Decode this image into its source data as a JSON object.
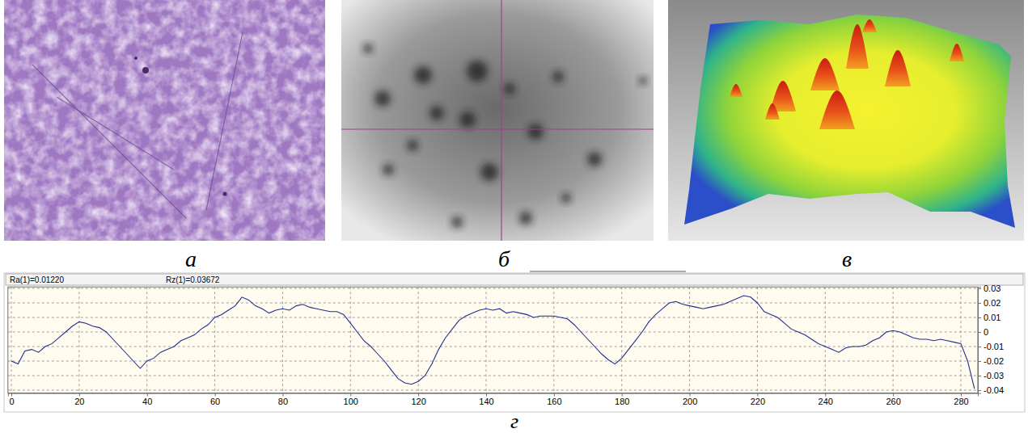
{
  "panel_labels": [
    "а",
    "б",
    "в",
    "г"
  ],
  "chart_data": {
    "type": "line",
    "annotations": [
      "Ra(1)=0.01220",
      "Rz(1)=0.03672"
    ],
    "x": [
      0,
      2,
      4,
      6,
      8,
      10,
      12,
      14,
      16,
      18,
      20,
      22,
      24,
      26,
      28,
      30,
      32,
      34,
      36,
      38,
      40,
      42,
      44,
      46,
      48,
      50,
      52,
      54,
      56,
      58,
      60,
      62,
      64,
      66,
      68,
      70,
      72,
      74,
      76,
      78,
      80,
      82,
      84,
      86,
      88,
      90,
      92,
      94,
      96,
      98,
      100,
      102,
      104,
      106,
      108,
      110,
      112,
      114,
      116,
      118,
      120,
      122,
      124,
      126,
      128,
      130,
      132,
      134,
      136,
      138,
      140,
      142,
      144,
      146,
      148,
      150,
      152,
      154,
      156,
      158,
      160,
      162,
      164,
      166,
      168,
      170,
      172,
      174,
      176,
      178,
      180,
      182,
      184,
      186,
      188,
      190,
      192,
      194,
      196,
      198,
      200,
      202,
      204,
      206,
      208,
      210,
      212,
      214,
      216,
      218,
      220,
      222,
      224,
      226,
      228,
      230,
      232,
      234,
      236,
      238,
      240,
      242,
      244,
      246,
      248,
      250,
      252,
      254,
      256,
      258,
      260,
      262,
      264,
      266,
      268,
      270,
      272,
      274,
      276,
      278,
      280,
      282,
      284
    ],
    "series": [
      {
        "color": "#1f2f8f",
        "values": [
          -0.02,
          -0.022,
          -0.013,
          -0.012,
          -0.014,
          -0.01,
          -0.008,
          -0.004,
          0.0,
          0.004,
          0.007,
          0.006,
          0.004,
          0.003,
          0.0,
          -0.005,
          -0.01,
          -0.015,
          -0.02,
          -0.025,
          -0.02,
          -0.018,
          -0.014,
          -0.012,
          -0.01,
          -0.006,
          -0.004,
          -0.002,
          0.002,
          0.005,
          0.01,
          0.012,
          0.015,
          0.018,
          0.024,
          0.022,
          0.018,
          0.016,
          0.013,
          0.015,
          0.016,
          0.015,
          0.018,
          0.019,
          0.017,
          0.016,
          0.015,
          0.014,
          0.014,
          0.012,
          0.006,
          0.0,
          -0.006,
          -0.01,
          -0.015,
          -0.02,
          -0.026,
          -0.032,
          -0.035,
          -0.036,
          -0.034,
          -0.03,
          -0.022,
          -0.012,
          -0.004,
          0.002,
          0.008,
          0.011,
          0.013,
          0.015,
          0.016,
          0.015,
          0.016,
          0.013,
          0.014,
          0.013,
          0.012,
          0.01,
          0.011,
          0.011,
          0.011,
          0.01,
          0.009,
          0.005,
          0.0,
          -0.005,
          -0.01,
          -0.015,
          -0.019,
          -0.022,
          -0.018,
          -0.012,
          -0.006,
          0.0,
          0.007,
          0.012,
          0.016,
          0.02,
          0.021,
          0.019,
          0.018,
          0.017,
          0.016,
          0.017,
          0.018,
          0.019,
          0.021,
          0.023,
          0.025,
          0.024,
          0.02,
          0.014,
          0.012,
          0.01,
          0.006,
          0.002,
          0.0,
          -0.002,
          -0.005,
          -0.008,
          -0.01,
          -0.012,
          -0.014,
          -0.011,
          -0.01,
          -0.01,
          -0.009,
          -0.006,
          -0.004,
          0.0,
          0.001,
          0.0,
          -0.002,
          -0.004,
          -0.005,
          -0.005,
          -0.006,
          -0.005,
          -0.006,
          -0.007,
          -0.008,
          -0.02,
          -0.039
        ]
      }
    ],
    "xlim": [
      -1,
      285
    ],
    "ylim": [
      -0.042,
      0.031
    ],
    "xticks": [
      0,
      20,
      40,
      60,
      80,
      100,
      120,
      140,
      160,
      180,
      200,
      220,
      240,
      260,
      280
    ],
    "yticks": [
      0.03,
      0.02,
      0.01,
      0,
      -0.01,
      -0.02,
      -0.03,
      -0.04
    ],
    "grid": true
  }
}
